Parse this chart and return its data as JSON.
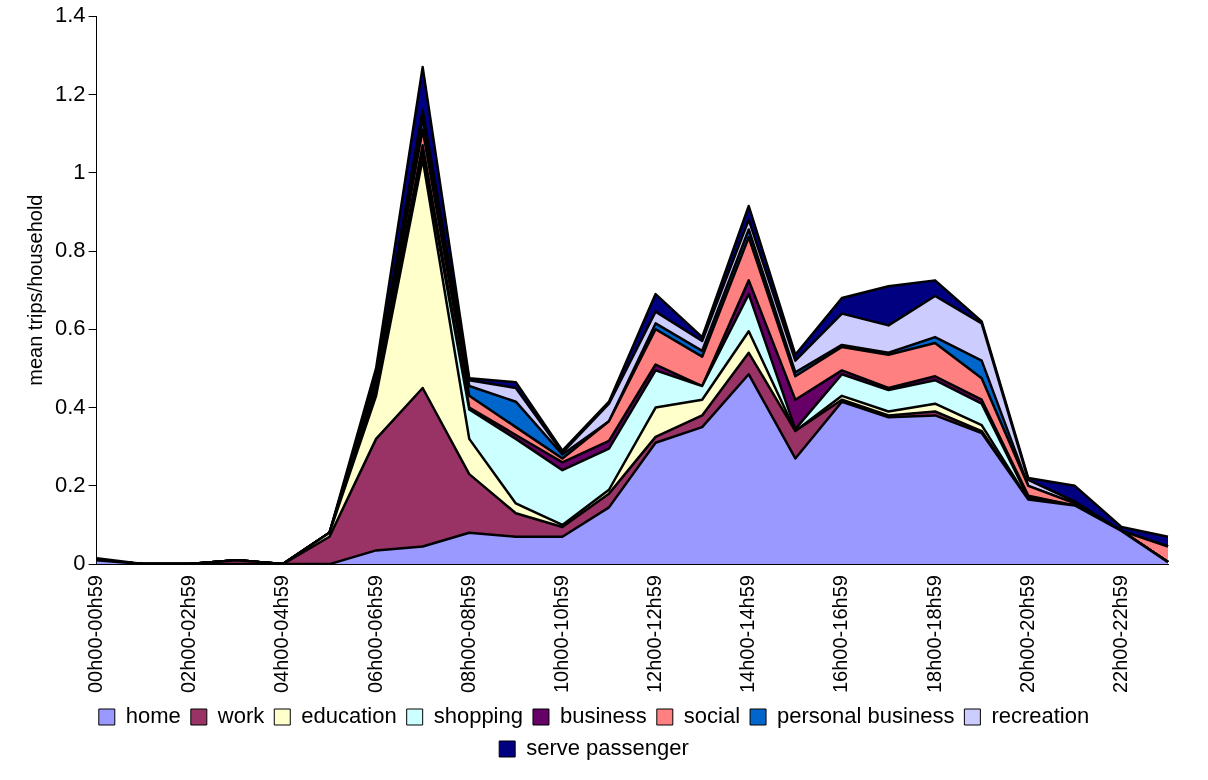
{
  "chart_data": {
    "type": "area",
    "ylabel": "mean trips/household",
    "stacked": true,
    "grid": false,
    "legend": "bottom",
    "marker": "none",
    "categories": [
      "00h00-00h59",
      null,
      "02h00-02h59",
      null,
      "04h00-04h59",
      null,
      "06h00-06h59",
      null,
      "08h00-08h59",
      null,
      "10h00-10h59",
      null,
      "12h00-12h59",
      null,
      "14h00-14h59",
      null,
      "16h00-16h59",
      null,
      "18h00-18h59",
      null,
      "20h00-20h59",
      null,
      "22h00-22h59",
      null
    ],
    "ylim": [
      0,
      1.4
    ],
    "yticks": [
      0,
      0.2,
      0.4,
      0.6,
      0.8,
      1,
      1.2,
      1.4
    ],
    "series": [
      {
        "name": "home",
        "color": "#9999ff",
        "values": [
          0.01,
          0,
          0,
          0,
          0,
          0,
          0.035,
          0.045,
          0.08,
          0.07,
          0.07,
          0.145,
          0.31,
          0.35,
          0.485,
          0.27,
          0.415,
          0.375,
          0.38,
          0.335,
          0.165,
          0.15,
          0.085,
          0.005
        ]
      },
      {
        "name": "work",
        "color": "#993366",
        "values": [
          0,
          0,
          0,
          0.01,
          0,
          0.07,
          0.285,
          0.405,
          0.15,
          0.06,
          0.025,
          0.035,
          0.015,
          0.03,
          0.055,
          0.07,
          0.005,
          0.005,
          0.01,
          0.005,
          0,
          0,
          0,
          0
        ]
      },
      {
        "name": "education",
        "color": "#ffffcc",
        "values": [
          0,
          0,
          0,
          0,
          0,
          0.01,
          0.11,
          0.585,
          0.09,
          0.025,
          0.005,
          0.01,
          0.075,
          0.04,
          0.055,
          0,
          0.01,
          0.01,
          0.02,
          0.015,
          0,
          0,
          0,
          0
        ]
      },
      {
        "name": "shopping",
        "color": "#ccffff",
        "values": [
          0,
          0,
          0,
          0,
          0,
          0,
          0.01,
          0.015,
          0.075,
          0.165,
          0.14,
          0.105,
          0.095,
          0.035,
          0.095,
          0.005,
          0.055,
          0.055,
          0.06,
          0.055,
          0.005,
          0,
          0,
          0
        ]
      },
      {
        "name": "business",
        "color": "#660066",
        "values": [
          0,
          0,
          0,
          0,
          0,
          0,
          0.01,
          0.02,
          0.005,
          0.01,
          0.02,
          0.02,
          0.015,
          0,
          0.035,
          0.075,
          0.01,
          0.005,
          0.01,
          0.01,
          0.005,
          0,
          0,
          0
        ]
      },
      {
        "name": "social",
        "color": "#ff8080",
        "values": [
          0,
          0,
          0,
          0,
          0,
          0,
          0.01,
          0.04,
          0.03,
          0.02,
          0.01,
          0.05,
          0.09,
          0.075,
          0.11,
          0.06,
          0.06,
          0.085,
          0.085,
          0.055,
          0.025,
          0.005,
          0,
          0.04
        ]
      },
      {
        "name": "personal business",
        "color": "#0066cc",
        "values": [
          0,
          0,
          0,
          0,
          0,
          0,
          0.01,
          0.03,
          0.025,
          0.065,
          0.01,
          0,
          0.015,
          0.015,
          0.02,
          0.01,
          0.005,
          0.005,
          0.015,
          0.045,
          0,
          0,
          0,
          0
        ]
      },
      {
        "name": "recreation",
        "color": "#ccccff",
        "values": [
          0,
          0,
          0,
          0,
          0,
          0,
          0.01,
          0.02,
          0.015,
          0.035,
          0.005,
          0.045,
          0.03,
          0.025,
          0.025,
          0.03,
          0.08,
          0.07,
          0.105,
          0.095,
          0.015,
          0.005,
          0,
          0
        ]
      },
      {
        "name": "serve passenger",
        "color": "#000080",
        "values": [
          0.005,
          0,
          0,
          0,
          0,
          0,
          0.02,
          0.11,
          0.005,
          0.015,
          0.005,
          0.005,
          0.045,
          0.01,
          0.035,
          0.015,
          0.04,
          0.1,
          0.04,
          0.005,
          0.005,
          0.04,
          0.01,
          0.025
        ]
      }
    ]
  }
}
